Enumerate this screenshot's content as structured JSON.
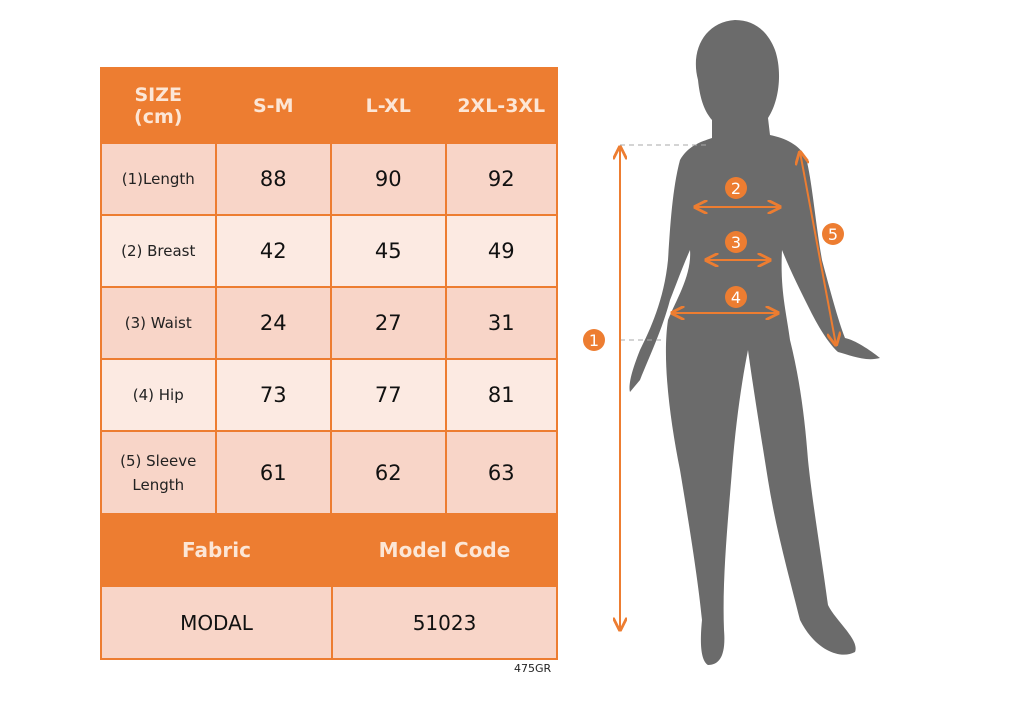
{
  "table": {
    "header": [
      "SIZE\n(cm)",
      "S-M",
      "L-XL",
      "2XL-3XL"
    ],
    "header_line1": "SIZE",
    "header_line2": "(cm)",
    "rows": [
      {
        "label": "(1)Length",
        "values": [
          "88",
          "90",
          "92"
        ]
      },
      {
        "label": "(2) Breast",
        "values": [
          "42",
          "45",
          "49"
        ]
      },
      {
        "label": "(3) Waist",
        "values": [
          "24",
          "27",
          "31"
        ]
      },
      {
        "label": "(4) Hip",
        "values": [
          "73",
          "77",
          "81"
        ]
      },
      {
        "label_line1": "(5) Sleeve",
        "label_line2": "Length",
        "values": [
          "61",
          "62",
          "63"
        ]
      }
    ],
    "footer_headers": [
      "Fabric",
      "Model Code"
    ],
    "footer_values": [
      "MODAL",
      "51023"
    ]
  },
  "code": "475GR",
  "figure_markers": [
    "1",
    "2",
    "3",
    "4",
    "5"
  ],
  "colors": {
    "accent": "#ED7D31",
    "silhouette": "#6B6B6B",
    "cell_dark": "#F8D5C8",
    "cell_light": "#FCEAE2"
  }
}
